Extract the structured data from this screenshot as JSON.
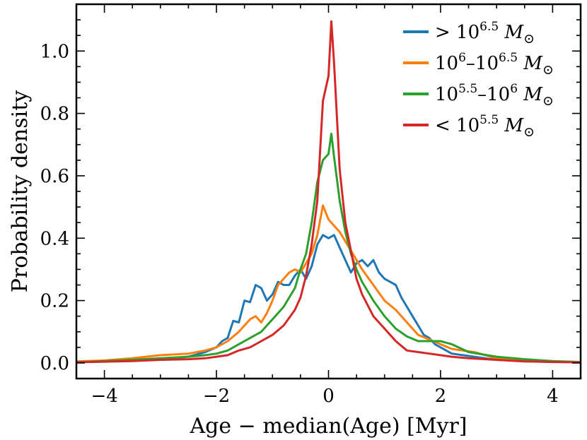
{
  "chart_data": {
    "type": "line",
    "title": "",
    "xlabel": "Age − median(Age) [Myr]",
    "ylabel": "Probability density",
    "xlim": [
      -4.5,
      4.5
    ],
    "ylim": [
      -0.05,
      1.15
    ],
    "x_ticks": [
      -4,
      -2,
      0,
      2,
      4
    ],
    "x_tick_labels": [
      "−4",
      "−2",
      "0",
      "2",
      "4"
    ],
    "y_ticks": [
      0.0,
      0.2,
      0.4,
      0.6,
      0.8,
      1.0
    ],
    "y_tick_labels": [
      "0.0",
      "0.2",
      "0.4",
      "0.6",
      "0.8",
      "1.0"
    ],
    "legend_position": "top-right",
    "series": [
      {
        "name": "> 10^6.5 M⊙",
        "legend": {
          "prefix": "> 10",
          "sup1": "6.5",
          "mid": "",
          "sup2": "",
          "unit": "M",
          "sun": "⊙"
        },
        "color": "#1f77b4",
        "x": [
          -4.5,
          -4.0,
          -3.5,
          -3.0,
          -2.5,
          -2.2,
          -2.0,
          -1.9,
          -1.8,
          -1.7,
          -1.6,
          -1.5,
          -1.4,
          -1.3,
          -1.2,
          -1.1,
          -1.0,
          -0.9,
          -0.8,
          -0.7,
          -0.6,
          -0.5,
          -0.4,
          -0.3,
          -0.2,
          -0.1,
          0.0,
          0.1,
          0.2,
          0.3,
          0.4,
          0.5,
          0.6,
          0.7,
          0.8,
          0.9,
          1.0,
          1.1,
          1.2,
          1.3,
          1.4,
          1.5,
          1.6,
          1.7,
          1.8,
          1.9,
          2.0,
          2.1,
          2.2,
          2.4,
          2.6,
          2.8,
          3.0,
          3.5,
          4.0,
          4.5
        ],
        "y": [
          0.003,
          0.005,
          0.008,
          0.012,
          0.02,
          0.035,
          0.05,
          0.07,
          0.08,
          0.135,
          0.13,
          0.2,
          0.195,
          0.25,
          0.24,
          0.2,
          0.22,
          0.26,
          0.25,
          0.25,
          0.28,
          0.3,
          0.27,
          0.31,
          0.38,
          0.41,
          0.4,
          0.41,
          0.37,
          0.33,
          0.29,
          0.32,
          0.33,
          0.31,
          0.33,
          0.29,
          0.27,
          0.26,
          0.25,
          0.21,
          0.18,
          0.15,
          0.12,
          0.09,
          0.08,
          0.06,
          0.05,
          0.04,
          0.03,
          0.025,
          0.02,
          0.015,
          0.01,
          0.006,
          0.004,
          0.003
        ]
      },
      {
        "name": "10^6–10^6.5 M⊙",
        "legend": {
          "prefix": "10",
          "sup1": "6",
          "mid": "–10",
          "sup2": "6.5",
          "unit": "M",
          "sun": "⊙"
        },
        "color": "#ff7f0e",
        "x": [
          -4.5,
          -4.0,
          -3.5,
          -3.0,
          -2.5,
          -2.2,
          -2.0,
          -1.8,
          -1.6,
          -1.5,
          -1.4,
          -1.3,
          -1.2,
          -1.1,
          -1.0,
          -0.9,
          -0.8,
          -0.7,
          -0.6,
          -0.5,
          -0.4,
          -0.3,
          -0.2,
          -0.1,
          0.0,
          0.1,
          0.2,
          0.3,
          0.4,
          0.5,
          0.6,
          0.8,
          1.0,
          1.2,
          1.4,
          1.6,
          1.8,
          2.0,
          2.2,
          2.4,
          2.6,
          2.8,
          3.0,
          3.5,
          4.0,
          4.5
        ],
        "y": [
          0.005,
          0.008,
          0.015,
          0.025,
          0.03,
          0.04,
          0.05,
          0.07,
          0.1,
          0.12,
          0.14,
          0.15,
          0.13,
          0.16,
          0.2,
          0.25,
          0.27,
          0.29,
          0.3,
          0.29,
          0.32,
          0.35,
          0.41,
          0.505,
          0.46,
          0.44,
          0.42,
          0.39,
          0.36,
          0.33,
          0.3,
          0.25,
          0.2,
          0.17,
          0.13,
          0.09,
          0.075,
          0.06,
          0.045,
          0.04,
          0.035,
          0.025,
          0.015,
          0.008,
          0.004,
          0.003
        ]
      },
      {
        "name": "10^5.5–10^6 M⊙",
        "legend": {
          "prefix": "10",
          "sup1": "5.5",
          "mid": "–10",
          "sup2": "6",
          "unit": "M",
          "sun": "⊙"
        },
        "color": "#2ca02c",
        "x": [
          -4.5,
          -4.0,
          -3.5,
          -3.0,
          -2.5,
          -2.2,
          -2.0,
          -1.8,
          -1.6,
          -1.4,
          -1.2,
          -1.0,
          -0.8,
          -0.6,
          -0.5,
          -0.4,
          -0.3,
          -0.2,
          -0.1,
          0.0,
          0.05,
          0.1,
          0.2,
          0.3,
          0.4,
          0.5,
          0.6,
          0.8,
          1.0,
          1.2,
          1.4,
          1.6,
          1.8,
          2.0,
          2.2,
          2.5,
          3.0,
          3.5,
          4.0,
          4.5
        ],
        "y": [
          0.003,
          0.006,
          0.01,
          0.015,
          0.02,
          0.025,
          0.03,
          0.04,
          0.06,
          0.08,
          0.1,
          0.14,
          0.18,
          0.24,
          0.3,
          0.35,
          0.45,
          0.58,
          0.65,
          0.67,
          0.735,
          0.66,
          0.52,
          0.42,
          0.35,
          0.3,
          0.26,
          0.2,
          0.15,
          0.11,
          0.085,
          0.07,
          0.07,
          0.07,
          0.06,
          0.035,
          0.02,
          0.012,
          0.006,
          0.003
        ]
      },
      {
        "name": "< 10^5.5 M⊙",
        "legend": {
          "prefix": "< 10",
          "sup1": "5.5",
          "mid": "",
          "sup2": "",
          "unit": "M",
          "sun": "⊙"
        },
        "color": "#d62728",
        "x": [
          -4.5,
          -4.0,
          -3.5,
          -3.0,
          -2.5,
          -2.2,
          -2.0,
          -1.8,
          -1.6,
          -1.4,
          -1.2,
          -1.0,
          -0.8,
          -0.6,
          -0.5,
          -0.4,
          -0.3,
          -0.2,
          -0.1,
          0.0,
          0.05,
          0.1,
          0.2,
          0.3,
          0.4,
          0.5,
          0.6,
          0.8,
          1.0,
          1.2,
          1.4,
          1.6,
          1.8,
          2.0,
          2.2,
          2.5,
          3.0,
          3.5,
          4.0,
          4.5
        ],
        "y": [
          0.002,
          0.004,
          0.006,
          0.01,
          0.012,
          0.015,
          0.02,
          0.025,
          0.04,
          0.05,
          0.07,
          0.09,
          0.12,
          0.17,
          0.21,
          0.28,
          0.38,
          0.52,
          0.84,
          0.92,
          1.095,
          0.96,
          0.62,
          0.45,
          0.36,
          0.27,
          0.22,
          0.15,
          0.11,
          0.07,
          0.04,
          0.035,
          0.03,
          0.025,
          0.02,
          0.015,
          0.01,
          0.005,
          0.003,
          0.002
        ]
      }
    ]
  }
}
